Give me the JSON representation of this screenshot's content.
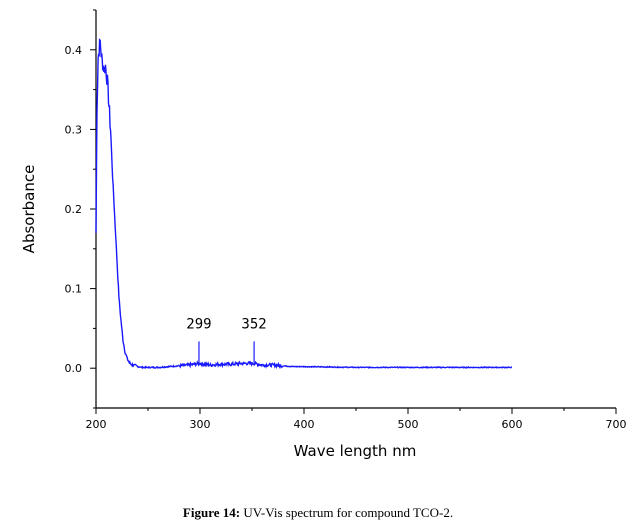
{
  "chart_data": {
    "type": "line",
    "xlabel": "Wave length nm",
    "ylabel": "Absorbance",
    "xlim": [
      200,
      700
    ],
    "ylim": [
      -0.05,
      0.45
    ],
    "x_ticks": [
      "200",
      "300",
      "400",
      "500",
      "600",
      "700"
    ],
    "y_ticks": [
      "0.0",
      "0.1",
      "0.2",
      "0.3",
      "0.4"
    ],
    "line_color": "#1a1aff",
    "series": [
      {
        "x": [
          200,
          201,
          202,
          203,
          204,
          205,
          206,
          207,
          208,
          209,
          210,
          211,
          212,
          213,
          214,
          215,
          216,
          218,
          220,
          222,
          224,
          226,
          228,
          230,
          232,
          235,
          240,
          245,
          250,
          260,
          270,
          280,
          290,
          299,
          310,
          320,
          330,
          340,
          352,
          360,
          370,
          380,
          390,
          400,
          450,
          500,
          550,
          600
        ],
        "y": [
          0.17,
          0.33,
          0.39,
          0.4,
          0.41,
          0.395,
          0.385,
          0.38,
          0.375,
          0.38,
          0.37,
          0.36,
          0.34,
          0.32,
          0.3,
          0.27,
          0.24,
          0.19,
          0.14,
          0.09,
          0.06,
          0.035,
          0.02,
          0.012,
          0.007,
          0.004,
          0.002,
          0.001,
          0.001,
          0.001,
          0.002,
          0.003,
          0.004,
          0.006,
          0.004,
          0.005,
          0.005,
          0.006,
          0.006,
          0.004,
          0.004,
          0.003,
          0.002,
          0.002,
          0.001,
          0.001,
          0.001,
          0.001
        ]
      }
    ],
    "annotations": [
      {
        "label": "299",
        "x": 299,
        "y": 0.006
      },
      {
        "label": "352",
        "x": 352,
        "y": 0.006
      }
    ]
  },
  "caption": {
    "prefix": "Figure 14:",
    "text": " UV-Vis spectrum for compound TCO-2."
  }
}
